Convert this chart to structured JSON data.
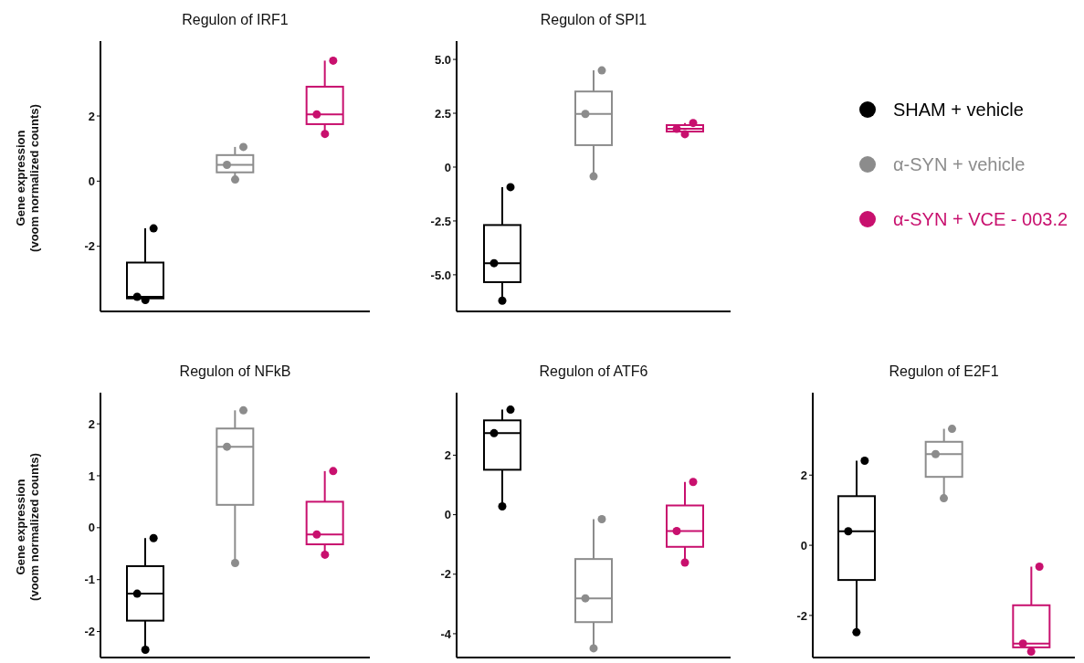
{
  "chart_data": [
    {
      "type": "box",
      "title": "Regulon of IRF1",
      "ylabel": "Gene expression\n(voom normalized counts)",
      "categories": [
        null,
        null,
        null
      ],
      "ylim": [
        -4.0,
        4.3
      ],
      "yticks": [
        -2,
        0,
        2
      ],
      "tick_labels": "y",
      "marker": "circle",
      "series": [
        {
          "type": "box",
          "color": "#000000",
          "boxes": [
            {
              "low": -3.65,
              "q1": -3.6,
              "median": -3.55,
              "q3": -2.5,
              "high": -1.45
            },
            null,
            null
          ]
        },
        {
          "type": "box",
          "color": "#8c8c8c",
          "boxes": [
            null,
            {
              "low": 0.05,
              "q1": 0.27,
              "median": 0.5,
              "q3": 0.8,
              "high": 1.05
            },
            null
          ]
        },
        {
          "type": "box",
          "color": "#c8106e",
          "boxes": [
            null,
            null,
            {
              "low": 1.45,
              "q1": 1.75,
              "median": 2.05,
              "q3": 2.9,
              "high": 3.7
            }
          ]
        },
        {
          "type": "scatter",
          "colors": [
            "#000000",
            "#8c8c8c",
            "#c8106e"
          ],
          "values": [
            -3.65,
            0.05,
            1.45
          ]
        },
        {
          "type": "scatter",
          "colors": [
            "#000000",
            "#8c8c8c",
            "#c8106e"
          ],
          "values": [
            -3.55,
            0.5,
            2.05
          ]
        },
        {
          "type": "scatter",
          "colors": [
            "#000000",
            "#8c8c8c",
            "#c8106e"
          ],
          "values": [
            -1.45,
            1.05,
            3.7
          ]
        }
      ]
    },
    {
      "type": "box",
      "title": "Regulon of SPI1",
      "categories": [
        null,
        null,
        null
      ],
      "ylim": [
        -6.7,
        5.85
      ],
      "yticks": [
        {
          "value": -5,
          "label": "-5.0"
        },
        {
          "value": -2.5,
          "label": "-2.5"
        },
        0,
        {
          "value": 2.5,
          "label": "2.5"
        },
        {
          "value": 5,
          "label": "5.0"
        }
      ],
      "tick_labels": "y",
      "marker": "circle",
      "legend": "right",
      "series": [
        {
          "type": "box",
          "name": "SHAM + vehicle",
          "color": "#000000",
          "boxes": [
            {
              "low": -6.2,
              "q1": -5.34,
              "median": -4.46,
              "q3": -2.69,
              "high": -0.93
            },
            null,
            null
          ]
        },
        {
          "type": "box",
          "name": "α-SYN + vehicle",
          "color": "#8c8c8c",
          "boxes": [
            null,
            {
              "low": -0.43,
              "q1": 1.02,
              "median": 2.47,
              "q3": 3.51,
              "high": 4.49
            },
            null
          ]
        },
        {
          "type": "box",
          "name": "α-SYN + VCE - 003.2",
          "color": "#c8106e",
          "boxes": [
            null,
            null,
            {
              "low": 1.53,
              "q1": 1.65,
              "median": 1.78,
              "q3": 1.95,
              "high": 2.05
            }
          ]
        },
        {
          "type": "scatter",
          "colors": [
            "#000000",
            "#8c8c8c",
            "#c8106e"
          ],
          "values": [
            -6.2,
            -0.43,
            1.53
          ]
        },
        {
          "type": "scatter",
          "colors": [
            "#000000",
            "#8c8c8c",
            "#c8106e"
          ],
          "values": [
            -4.46,
            2.47,
            1.78
          ]
        },
        {
          "type": "scatter",
          "colors": [
            "#000000",
            "#8c8c8c",
            "#c8106e"
          ],
          "values": [
            -0.93,
            4.49,
            2.05
          ]
        }
      ]
    },
    {
      "type": "box",
      "title": "Regulon of NFkB",
      "ylabel": "Gene expression\n(voom normalized counts)",
      "categories": [
        null,
        null,
        null
      ],
      "ylim": [
        -2.5,
        2.6
      ],
      "yticks": [
        -2,
        -1,
        0,
        1,
        2
      ],
      "tick_labels": "y",
      "marker": "circle",
      "series": [
        {
          "type": "box",
          "color": "#000000",
          "boxes": [
            {
              "low": -2.35,
              "q1": -1.79,
              "median": -1.27,
              "q3": -0.74,
              "high": -0.2
            },
            null,
            null
          ]
        },
        {
          "type": "box",
          "color": "#8c8c8c",
          "boxes": [
            null,
            {
              "low": -0.68,
              "q1": 0.44,
              "median": 1.56,
              "q3": 1.91,
              "high": 2.26
            },
            null
          ]
        },
        {
          "type": "box",
          "color": "#c8106e",
          "boxes": [
            null,
            null,
            {
              "low": -0.52,
              "q1": -0.32,
              "median": -0.13,
              "q3": 0.5,
              "high": 1.09
            }
          ]
        },
        {
          "type": "scatter",
          "colors": [
            "#000000",
            "#8c8c8c",
            "#c8106e"
          ],
          "values": [
            -2.35,
            -0.68,
            -0.52
          ]
        },
        {
          "type": "scatter",
          "colors": [
            "#000000",
            "#8c8c8c",
            "#c8106e"
          ],
          "values": [
            -1.27,
            1.56,
            -0.13
          ]
        },
        {
          "type": "scatter",
          "colors": [
            "#000000",
            "#8c8c8c",
            "#c8106e"
          ],
          "values": [
            -0.2,
            2.26,
            1.09
          ]
        }
      ]
    },
    {
      "type": "box",
      "title": "Regulon of ATF6",
      "categories": [
        null,
        null,
        null
      ],
      "ylim": [
        -4.8,
        4.1
      ],
      "yticks": [
        -4,
        -2,
        0,
        2
      ],
      "tick_labels": "y",
      "marker": "circle",
      "series": [
        {
          "type": "box",
          "color": "#000000",
          "boxes": [
            {
              "low": 0.28,
              "q1": 1.51,
              "median": 2.74,
              "q3": 3.17,
              "high": 3.53
            },
            null,
            null
          ]
        },
        {
          "type": "box",
          "color": "#8c8c8c",
          "boxes": [
            null,
            {
              "low": -4.49,
              "q1": -3.61,
              "median": -2.81,
              "q3": -1.49,
              "high": -0.15
            },
            null
          ]
        },
        {
          "type": "box",
          "color": "#c8106e",
          "boxes": [
            null,
            null,
            {
              "low": -1.61,
              "q1": -1.08,
              "median": -0.55,
              "q3": 0.31,
              "high": 1.1
            }
          ]
        },
        {
          "type": "scatter",
          "colors": [
            "#000000",
            "#8c8c8c",
            "#c8106e"
          ],
          "values": [
            0.28,
            -4.49,
            -1.61
          ]
        },
        {
          "type": "scatter",
          "colors": [
            "#000000",
            "#8c8c8c",
            "#c8106e"
          ],
          "values": [
            2.74,
            -2.81,
            -0.55
          ]
        },
        {
          "type": "scatter",
          "colors": [
            "#000000",
            "#8c8c8c",
            "#c8106e"
          ],
          "values": [
            3.53,
            -0.15,
            1.1
          ]
        }
      ]
    },
    {
      "type": "box",
      "title": "Regulon of E2F1",
      "categories": [
        null,
        null,
        null
      ],
      "ylim": [
        -3.2,
        4.35
      ],
      "yticks": [
        -2,
        0,
        2
      ],
      "tick_labels": "y",
      "marker": "circle",
      "series": [
        {
          "type": "box",
          "color": "#000000",
          "boxes": [
            {
              "low": -2.48,
              "q1": -0.99,
              "median": 0.4,
              "q3": 1.4,
              "high": 2.41
            },
            null,
            null
          ]
        },
        {
          "type": "box",
          "color": "#8c8c8c",
          "boxes": [
            null,
            {
              "low": 1.34,
              "q1": 1.95,
              "median": 2.6,
              "q3": 2.95,
              "high": 3.32
            },
            null
          ]
        },
        {
          "type": "box",
          "color": "#c8106e",
          "boxes": [
            null,
            null,
            {
              "low": -3.03,
              "q1": -2.91,
              "median": -2.8,
              "q3": -1.71,
              "high": -0.61
            }
          ]
        },
        {
          "type": "scatter",
          "colors": [
            "#000000",
            "#8c8c8c",
            "#c8106e"
          ],
          "values": [
            -2.48,
            1.34,
            -3.03
          ]
        },
        {
          "type": "scatter",
          "colors": [
            "#000000",
            "#8c8c8c",
            "#c8106e"
          ],
          "values": [
            0.4,
            2.6,
            -2.8
          ]
        },
        {
          "type": "scatter",
          "colors": [
            "#000000",
            "#8c8c8c",
            "#c8106e"
          ],
          "values": [
            2.41,
            3.32,
            -0.61
          ]
        }
      ]
    }
  ]
}
